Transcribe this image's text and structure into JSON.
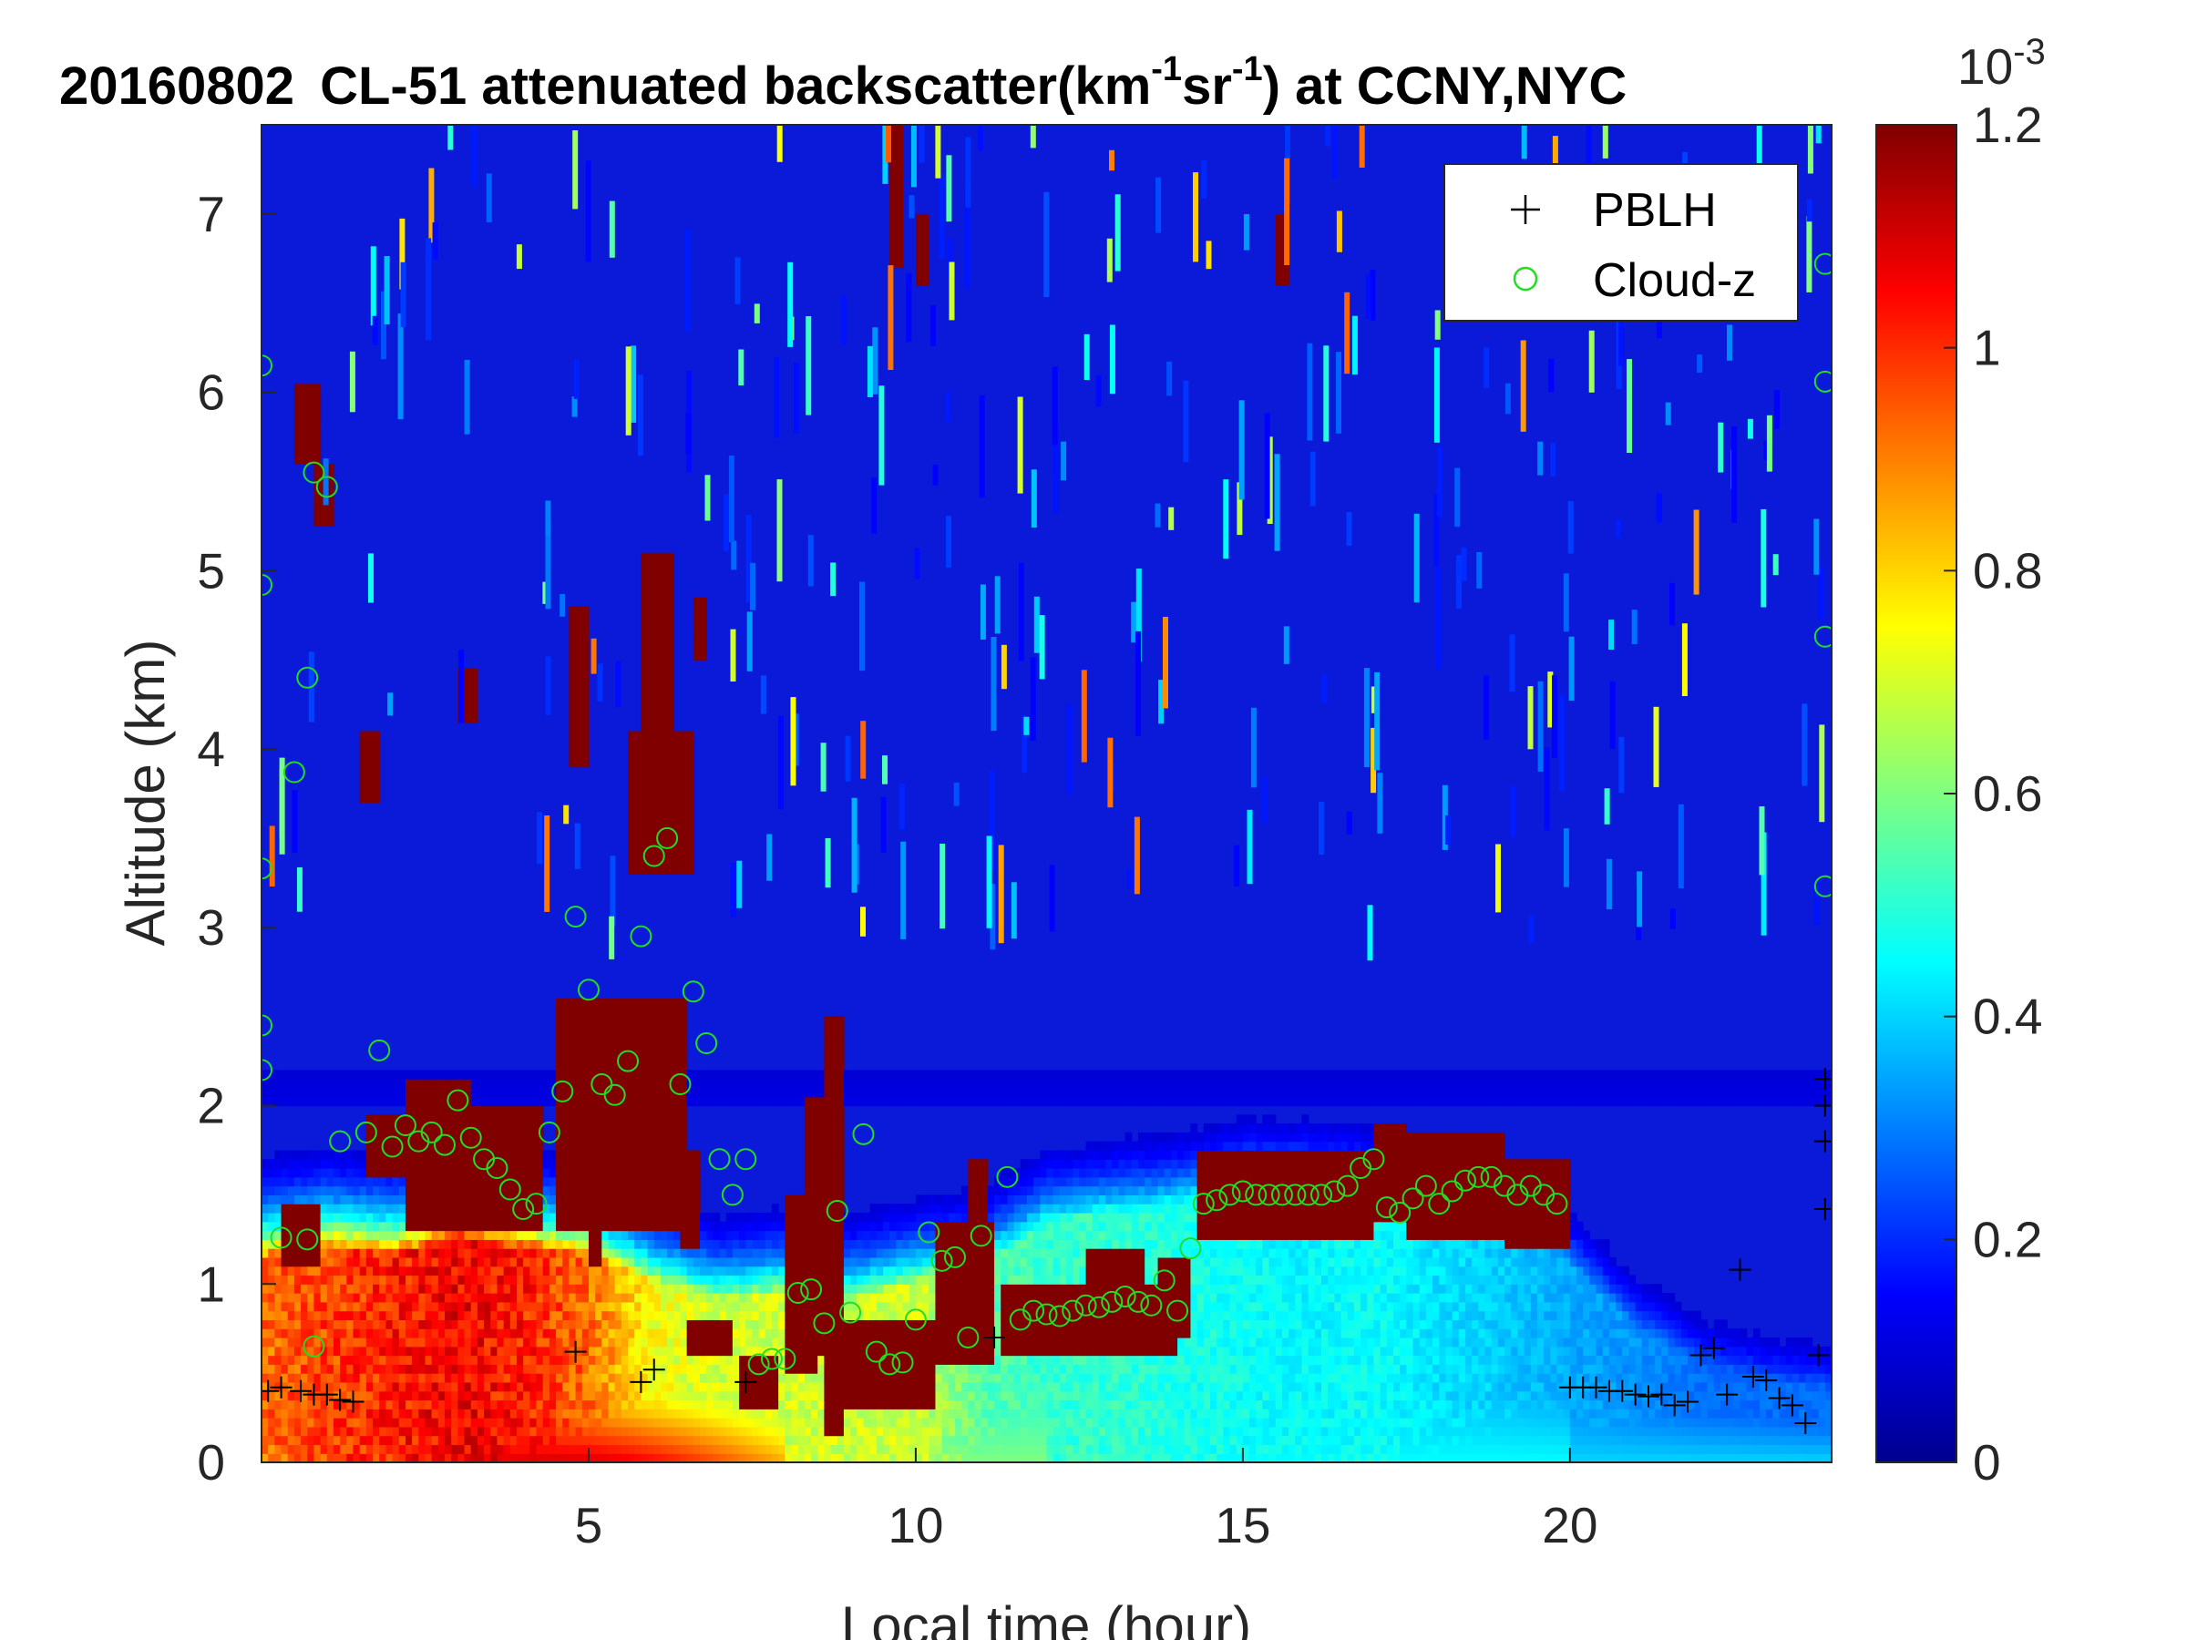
{
  "chart_data": {
    "type": "heatmap",
    "title": {
      "date": "20160802",
      "main": "CL-51 attenuated backscatter(km",
      "sup1": "-1",
      "mid": "sr",
      "sup2": "-1",
      "tail": ") at CCNY,NYC"
    },
    "xlabel": "Local time (hour)",
    "ylabel": "Altitude (km)",
    "xlim": [
      0,
      24
    ],
    "ylim": [
      0,
      7.5
    ],
    "x_ticks": [
      5,
      10,
      15,
      20
    ],
    "x_tick_labels": [
      "5",
      "10",
      "15",
      "20"
    ],
    "y_ticks": [
      0,
      1,
      2,
      3,
      4,
      5,
      6,
      7
    ],
    "y_tick_labels": [
      "0",
      "1",
      "2",
      "3",
      "4",
      "5",
      "6",
      "7"
    ],
    "colorbar": {
      "colormap": "jet",
      "min": 0,
      "max": 1.2,
      "ticks": [
        0,
        0.2,
        0.4,
        0.6,
        0.8,
        1,
        1.2
      ],
      "tick_labels": [
        "0",
        "0.2",
        "0.4",
        "0.6",
        "0.8",
        "1",
        "1.2"
      ],
      "exponent_base": "10",
      "exponent": "-3"
    },
    "legend": {
      "position": "top-right",
      "entries": [
        {
          "name": "PBLH",
          "marker": "+",
          "color": "#000000"
        },
        {
          "name": "Cloud-z",
          "marker": "o",
          "color": "#22dd22"
        }
      ]
    },
    "series": [
      {
        "name": "PBLH",
        "x": [
          0.1,
          0.3,
          0.6,
          0.8,
          1.0,
          1.2,
          1.4,
          4.8,
          5.8,
          6.0,
          7.4,
          11.2,
          20.0,
          20.2,
          20.4,
          20.6,
          20.8,
          21.0,
          21.2,
          21.4,
          21.6,
          21.8,
          22.0,
          22.2,
          22.4,
          22.6,
          22.8,
          23.0,
          23.2,
          23.4,
          23.6,
          23.8,
          23.9,
          23.9,
          23.9,
          23.9
        ],
        "y": [
          0.4,
          0.42,
          0.4,
          0.38,
          0.38,
          0.35,
          0.34,
          0.62,
          0.45,
          0.52,
          0.45,
          0.7,
          0.42,
          0.42,
          0.42,
          0.4,
          0.4,
          0.38,
          0.37,
          0.38,
          0.32,
          0.34,
          0.6,
          0.64,
          0.38,
          1.08,
          0.48,
          0.46,
          0.36,
          0.32,
          0.22,
          0.6,
          1.42,
          1.8,
          2.0,
          2.15
        ]
      },
      {
        "name": "Cloud-z",
        "x": [
          0.3,
          0.5,
          0.7,
          0.8,
          1.0,
          1.2,
          1.6,
          1.8,
          2.0,
          2.2,
          2.4,
          2.6,
          2.8,
          3.0,
          3.2,
          3.4,
          3.6,
          3.8,
          4.0,
          4.2,
          4.4,
          4.6,
          4.8,
          5.0,
          5.2,
          5.4,
          5.6,
          5.8,
          6.0,
          6.2,
          6.4,
          6.6,
          6.8,
          7.0,
          7.2,
          7.4,
          7.6,
          7.8,
          8.0,
          8.2,
          8.4,
          8.6,
          8.8,
          9.0,
          9.2,
          9.4,
          9.6,
          9.8,
          10.0,
          10.2,
          10.4,
          10.6,
          10.8,
          11.0,
          11.4,
          11.6,
          11.8,
          12.0,
          12.2,
          12.4,
          12.6,
          12.8,
          13.0,
          13.2,
          13.4,
          13.6,
          13.8,
          14.0,
          14.2,
          14.4,
          14.6,
          14.8,
          15.0,
          15.2,
          15.4,
          15.6,
          15.8,
          16.0,
          16.2,
          16.4,
          16.6,
          16.8,
          17.0,
          17.2,
          17.4,
          17.6,
          17.8,
          18.0,
          18.2,
          18.4,
          18.6,
          18.8,
          19.0,
          19.2,
          19.4,
          19.6,
          19.8,
          0.0,
          0.0,
          0.0,
          0.0,
          0.0,
          0.7,
          0.8,
          23.9,
          23.9,
          23.9,
          23.9
        ],
        "y": [
          1.26,
          3.87,
          4.4,
          5.55,
          5.47,
          1.8,
          1.85,
          2.31,
          1.77,
          1.89,
          1.8,
          1.85,
          1.78,
          2.03,
          1.82,
          1.7,
          1.65,
          1.53,
          1.42,
          1.45,
          1.85,
          2.08,
          3.06,
          2.65,
          2.12,
          2.06,
          2.25,
          2.95,
          3.4,
          3.5,
          2.12,
          2.64,
          2.35,
          1.7,
          1.5,
          1.7,
          0.55,
          0.58,
          0.58,
          0.95,
          0.97,
          0.78,
          1.41,
          0.84,
          1.84,
          0.62,
          0.55,
          0.56,
          0.8,
          1.29,
          1.13,
          1.15,
          0.7,
          1.27,
          1.6,
          0.8,
          0.85,
          0.83,
          0.82,
          0.85,
          0.88,
          0.87,
          0.9,
          0.93,
          0.9,
          0.88,
          1.02,
          0.85,
          1.2,
          1.45,
          1.47,
          1.5,
          1.52,
          1.5,
          1.5,
          1.5,
          1.5,
          1.5,
          1.5,
          1.52,
          1.55,
          1.65,
          1.7,
          1.43,
          1.4,
          1.48,
          1.55,
          1.45,
          1.52,
          1.58,
          1.6,
          1.6,
          1.55,
          1.5,
          1.55,
          1.5,
          1.45,
          6.15,
          4.92,
          3.33,
          2.45,
          2.2,
          1.25,
          0.65,
          6.72,
          6.06,
          4.63,
          3.23
        ]
      }
    ]
  }
}
